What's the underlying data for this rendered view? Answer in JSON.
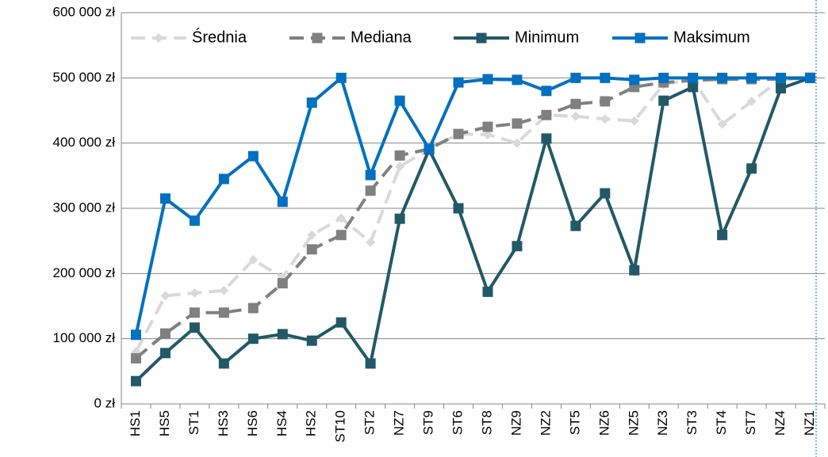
{
  "chart_data": {
    "type": "line",
    "categories": [
      "HS1",
      "HS5",
      "ST1",
      "HS3",
      "HS6",
      "HS4",
      "HS2",
      "ST10",
      "ST2",
      "NZ7",
      "ST9",
      "ST6",
      "ST8",
      "NZ9",
      "NZ2",
      "ST5",
      "NZ6",
      "NZ5",
      "NZ3",
      "ST3",
      "ST4",
      "ST7",
      "NZ4",
      "NZ1"
    ],
    "series": [
      {
        "name": "Średnia",
        "color": "#d9d9d9",
        "dash": true,
        "marker": "diamond",
        "values": [
          80000,
          166000,
          170000,
          174000,
          221000,
          194000,
          259000,
          285000,
          248000,
          364000,
          391000,
          414000,
          413000,
          400000,
          443000,
          441000,
          437000,
          434000,
          490000,
          498000,
          429000,
          464000,
          498000,
          500000
        ]
      },
      {
        "name": "Mediana",
        "color": "#808080",
        "dash": true,
        "marker": "square",
        "values": [
          70000,
          108000,
          140000,
          140000,
          147000,
          185000,
          237000,
          259000,
          327000,
          381000,
          391000,
          414000,
          425000,
          430000,
          443000,
          460000,
          464000,
          486000,
          493000,
          496000,
          498000,
          498000,
          498000,
          500000
        ]
      },
      {
        "name": "Minimum",
        "color": "#215968",
        "dash": false,
        "marker": "square",
        "values": [
          35000,
          78000,
          117000,
          62000,
          100000,
          107000,
          97000,
          125000,
          62000,
          284000,
          390000,
          300000,
          172000,
          242000,
          407000,
          273000,
          323000,
          205000,
          465000,
          486000,
          259000,
          361000,
          484000,
          500000
        ]
      },
      {
        "name": "Maksimum",
        "color": "#0070c0",
        "dash": false,
        "marker": "square",
        "values": [
          106000,
          315000,
          281000,
          345000,
          380000,
          310000,
          462000,
          500000,
          351000,
          465000,
          391000,
          493000,
          498000,
          497000,
          480000,
          500000,
          500000,
          497000,
          500000,
          500000,
          500000,
          500000,
          500000,
          500000
        ]
      }
    ],
    "ylim": [
      0,
      600000
    ],
    "yticks": [
      {
        "value": 0,
        "label": "0 zł"
      },
      {
        "value": 100000,
        "label": "100 000 zł"
      },
      {
        "value": 200000,
        "label": "200 000 zł"
      },
      {
        "value": 300000,
        "label": "300 000 zł"
      },
      {
        "value": 400000,
        "label": "400 000 zł"
      },
      {
        "value": 500000,
        "label": "500 000 zł"
      },
      {
        "value": 600000,
        "label": "600 000 zł"
      }
    ],
    "grid": true,
    "legend": "top"
  }
}
